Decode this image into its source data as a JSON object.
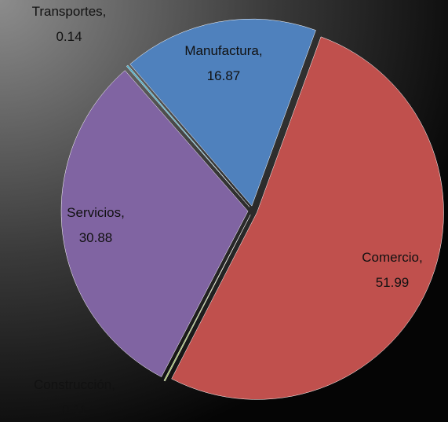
{
  "chart_data": {
    "type": "pie",
    "values": [
      16.87,
      51.99,
      0.11,
      30.88,
      0.14
    ],
    "value_labels": [
      "Manufactura, 16.87",
      "Comercio, 51.99",
      "Construcción, 0.11",
      "Servicios, 30.88",
      "Transportes, 0.14"
    ],
    "colors": [
      "#4f81bd",
      "#c0504d",
      "#9bbb59",
      "#8064a2",
      "#4bacc6"
    ]
  }
}
